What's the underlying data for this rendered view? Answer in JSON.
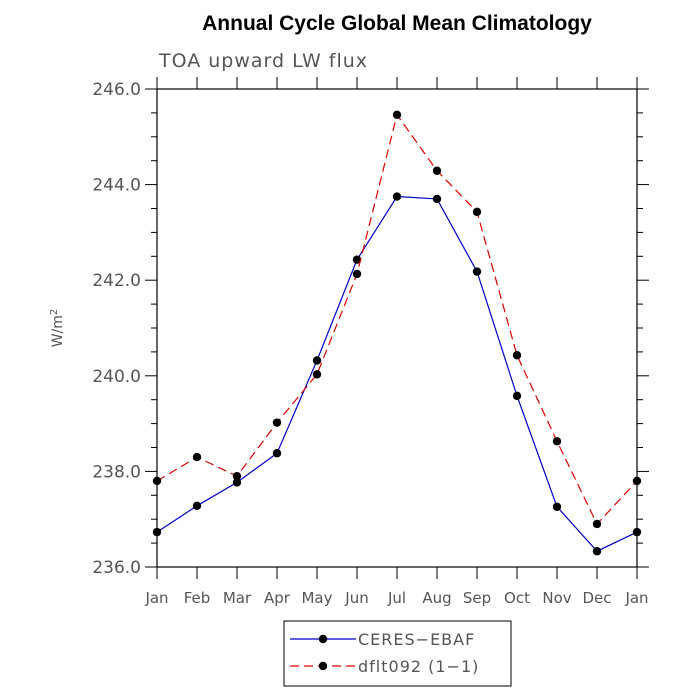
{
  "chart_data": {
    "type": "line",
    "title": "Annual Cycle Global Mean Climatology",
    "subtitle": "TOA upward LW flux",
    "ylabel_base": "W/m",
    "ylabel_sup": "2",
    "xlabel": "",
    "categories": [
      "Jan",
      "Feb",
      "Mar",
      "Apr",
      "May",
      "Jun",
      "Jul",
      "Aug",
      "Sep",
      "Oct",
      "Nov",
      "Dec",
      "Jan"
    ],
    "ylim": [
      236.0,
      246.0
    ],
    "yticks": [
      "236.0",
      "238.0",
      "240.0",
      "242.0",
      "244.0",
      "246.0"
    ],
    "grid": false,
    "legend_position": "bottom-center",
    "series": [
      {
        "name": "CERES−EBAF",
        "color": "#0000cc",
        "dash": "solid",
        "values": [
          236.73,
          237.28,
          237.77,
          238.38,
          240.32,
          242.43,
          243.75,
          243.7,
          242.18,
          239.58,
          237.26,
          236.33,
          236.73
        ]
      },
      {
        "name": "dflt092 (1−1)",
        "color": "#dd0000",
        "dash": "dashed",
        "values": [
          237.8,
          238.3,
          237.9,
          239.02,
          240.03,
          242.13,
          245.46,
          244.29,
          243.43,
          240.43,
          238.63,
          236.9,
          237.8
        ]
      }
    ]
  }
}
